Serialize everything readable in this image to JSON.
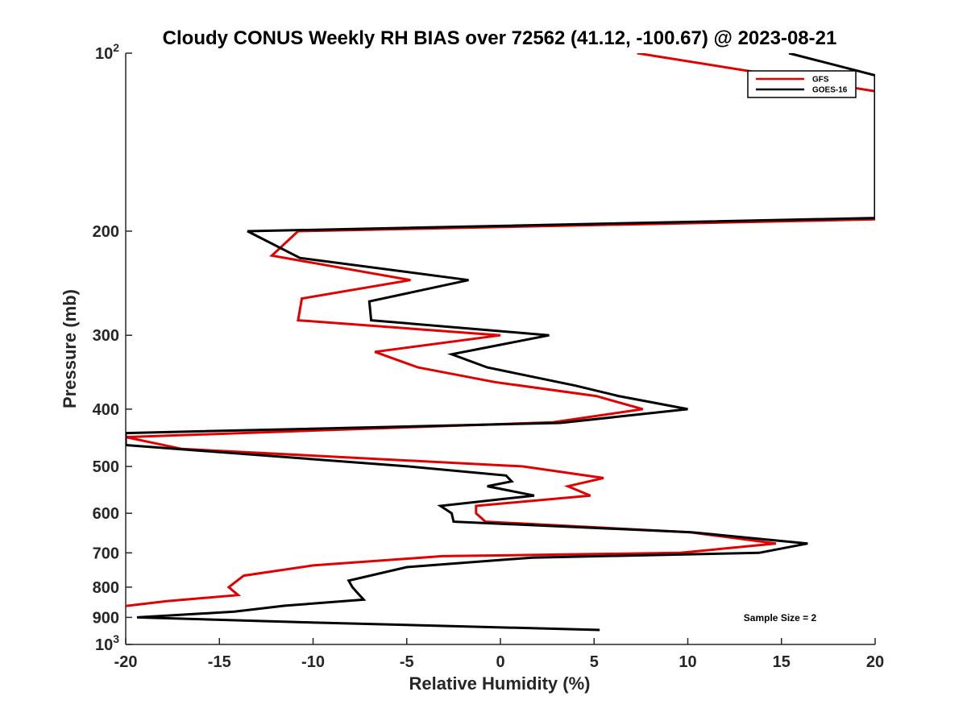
{
  "chart_data": {
    "type": "line",
    "title": "Cloudy CONUS Weekly RH BIAS over 72562 (41.12, -100.67) @ 2023-08-21",
    "xlabel": "Relative Humidity (%)",
    "ylabel": "Pressure (mb)",
    "xlim": [
      -20,
      20
    ],
    "ylim": [
      100,
      1000
    ],
    "y_scale": "log",
    "y_reversed": true,
    "x_ticks": [
      -20,
      -15,
      -10,
      -5,
      0,
      5,
      10,
      15,
      20
    ],
    "x_tick_labels": [
      "-20",
      "-15",
      "-10",
      "-5",
      "0",
      "5",
      "10",
      "15",
      "20"
    ],
    "y_ticks": [
      100,
      200,
      300,
      400,
      500,
      600,
      700,
      800,
      900,
      1000
    ],
    "y_tick_labels": [
      "10^2",
      "200",
      "300",
      "400",
      "500",
      "600",
      "700",
      "800",
      "900",
      "10^3"
    ],
    "grid": false,
    "legend": {
      "position": "top-right",
      "entries": [
        "GFS",
        "GOES-16"
      ]
    },
    "annotation": "Sample Size = 2",
    "series": [
      {
        "name": "GFS",
        "color": "#e00000",
        "points": [
          [
            7.3,
            100
          ],
          [
            20,
            116
          ],
          [
            20,
            191
          ],
          [
            -10.8,
            200
          ],
          [
            -12.2,
            220
          ],
          [
            -4.8,
            242
          ],
          [
            -10.6,
            260
          ],
          [
            -10.8,
            283
          ],
          [
            0,
            300
          ],
          [
            -6.7,
            320
          ],
          [
            -4.4,
            340
          ],
          [
            -0.3,
            360
          ],
          [
            5.1,
            380
          ],
          [
            7.6,
            400
          ],
          [
            2.8,
            421
          ],
          [
            -20,
            446
          ],
          [
            -17,
            467
          ],
          [
            1.2,
            500
          ],
          [
            5.5,
            523
          ],
          [
            3.6,
            540
          ],
          [
            4.8,
            560
          ],
          [
            -1.3,
            583
          ],
          [
            -1.3,
            600
          ],
          [
            -0.8,
            620
          ],
          [
            10.1,
            646
          ],
          [
            14.7,
            675
          ],
          [
            9.6,
            700
          ],
          [
            -3.1,
            709
          ],
          [
            -10,
            735
          ],
          [
            -13.7,
            765
          ],
          [
            -14.5,
            800
          ],
          [
            -14,
            825
          ],
          [
            -17.8,
            845
          ],
          [
            -20,
            861
          ]
        ]
      },
      {
        "name": "GOES-16",
        "color": "#000000",
        "points": [
          [
            15.4,
            100
          ],
          [
            20,
            109
          ],
          [
            20,
            190
          ],
          [
            -13.5,
            200
          ],
          [
            -10.7,
            222
          ],
          [
            -1.7,
            242
          ],
          [
            -7,
            263
          ],
          [
            -6.9,
            283
          ],
          [
            2.6,
            300
          ],
          [
            -2.6,
            323
          ],
          [
            -0.7,
            340
          ],
          [
            4,
            365
          ],
          [
            6.3,
            380
          ],
          [
            10,
            400
          ],
          [
            3.2,
            422
          ],
          [
            -20,
            439
          ],
          [
            -20,
            460
          ],
          [
            -4.9,
            500
          ],
          [
            0.3,
            518
          ],
          [
            0.6,
            530
          ],
          [
            -0.7,
            540
          ],
          [
            1.8,
            560
          ],
          [
            -3.2,
            583
          ],
          [
            -2.6,
            600
          ],
          [
            -2.5,
            620
          ],
          [
            10.2,
            646
          ],
          [
            16.4,
            675
          ],
          [
            13.8,
            700
          ],
          [
            1.7,
            713
          ],
          [
            -5,
            740
          ],
          [
            -8.1,
            780
          ],
          [
            -7.9,
            800
          ],
          [
            -7.6,
            820
          ],
          [
            -7.3,
            840
          ],
          [
            -11.5,
            860
          ],
          [
            -14.2,
            880
          ],
          [
            -19.4,
            900
          ],
          [
            -10.1,
            918
          ],
          [
            5.3,
            945
          ]
        ]
      }
    ]
  }
}
